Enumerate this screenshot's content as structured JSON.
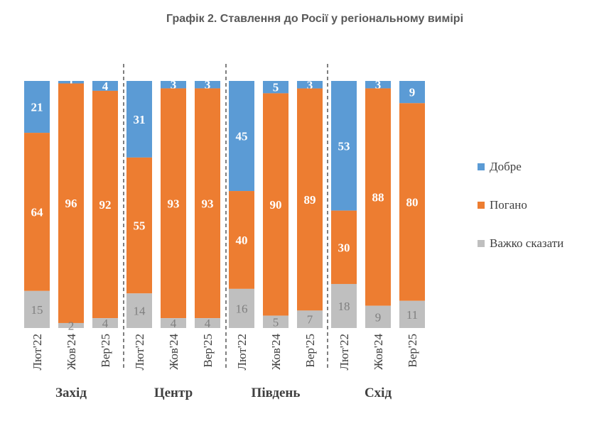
{
  "chart_data": {
    "type": "bar",
    "stacked": true,
    "title": "Графік 2. Ставлення до Росії у регіональному вимірі",
    "groups": [
      {
        "name": "Захід",
        "categories": [
          "Лют'22",
          "Жов'24",
          "Вер'25"
        ]
      },
      {
        "name": "Центр",
        "categories": [
          "Лют'22",
          "Жов'24",
          "Вер'25"
        ]
      },
      {
        "name": "Південь",
        "categories": [
          "Лют'22",
          "Жов'24",
          "Вер'25"
        ]
      },
      {
        "name": "Схід",
        "categories": [
          "Лют'22",
          "Жов'24",
          "Вер'25"
        ]
      }
    ],
    "series": [
      {
        "name": "Добре",
        "color": "#5B9BD5",
        "values": [
          21,
          1,
          4,
          31,
          3,
          3,
          45,
          5,
          3,
          53,
          3,
          9
        ]
      },
      {
        "name": "Погано",
        "color": "#ED7D31",
        "values": [
          64,
          96,
          92,
          55,
          93,
          93,
          40,
          90,
          89,
          30,
          88,
          80
        ]
      },
      {
        "name": "Важко сказати",
        "color": "#BFBFBF",
        "values": [
          15,
          2,
          4,
          14,
          4,
          4,
          16,
          5,
          7,
          18,
          9,
          11
        ]
      }
    ],
    "legend_position": "right",
    "grid": false
  }
}
